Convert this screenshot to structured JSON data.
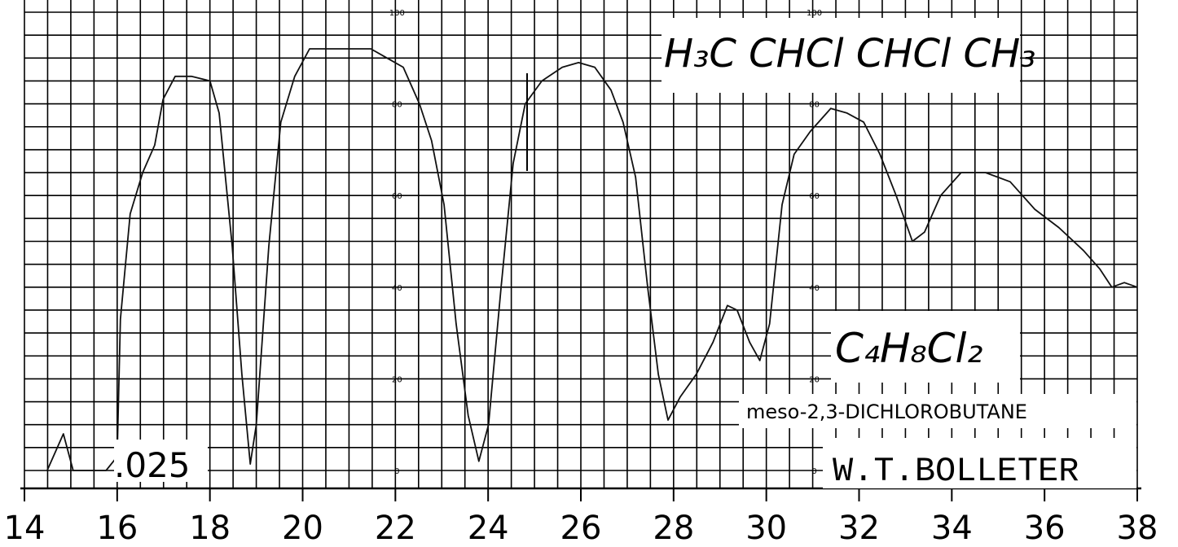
{
  "chart_data": {
    "type": "line",
    "title": "H₃C CHCl CHCl CH₃",
    "formula": "C₄H₈Cl₂",
    "subtitle": "meso-2,3-DICHLOROBUTANE",
    "author": "W.T.BOLLETER",
    "annotation": ".025",
    "color": "#111111",
    "x": [
      14.49,
      14.84,
      15.05,
      15.76,
      16.0,
      16.07,
      16.28,
      16.55,
      16.81,
      16.99,
      17.25,
      17.6,
      18.0,
      18.2,
      18.48,
      18.69,
      18.87,
      19.0,
      19.27,
      19.53,
      19.83,
      20.15,
      20.5,
      21.03,
      21.47,
      21.82,
      22.17,
      22.52,
      22.78,
      23.05,
      23.31,
      23.57,
      23.8,
      24.01,
      24.28,
      24.54,
      24.8,
      25.16,
      25.6,
      25.95,
      26.3,
      26.65,
      26.91,
      27.18,
      27.44,
      27.67,
      27.88,
      28.14,
      28.49,
      28.85,
      29.16,
      29.37,
      29.64,
      29.86,
      30.07,
      30.34,
      30.6,
      30.95,
      31.39,
      31.74,
      32.1,
      32.45,
      32.8,
      33.15,
      33.41,
      33.76,
      34.2,
      34.73,
      35.26,
      35.79,
      36.31,
      36.84,
      37.19,
      37.45,
      37.72,
      38.0
    ],
    "values": [
      0,
      8,
      0,
      0,
      3,
      33,
      56,
      65,
      71,
      81,
      86,
      86,
      85,
      78,
      49,
      21,
      1.4,
      10,
      49,
      76,
      86,
      92,
      92,
      92,
      92,
      90,
      88,
      80,
      72,
      58,
      32,
      12,
      2,
      10,
      40,
      67,
      80,
      85,
      88,
      89,
      88,
      83,
      76,
      64,
      40,
      21,
      11,
      16,
      21,
      28,
      36,
      35,
      28,
      24,
      32,
      58,
      69,
      74,
      79,
      78,
      76,
      69,
      60,
      50,
      52,
      60,
      65,
      65,
      63,
      57,
      53,
      48,
      44,
      40,
      41,
      40
    ],
    "xlim": [
      14,
      38
    ],
    "ylim": [
      0,
      100
    ],
    "xticks": [
      14,
      16,
      18,
      20,
      22,
      24,
      26,
      28,
      30,
      32,
      34,
      36,
      38
    ],
    "yticks": [
      0,
      20,
      40,
      60,
      80,
      100
    ],
    "xgrid": [
      14,
      14.5,
      15,
      15.5,
      16,
      16.5,
      17,
      17.5,
      18,
      18.5,
      19,
      19.5,
      20,
      20.5,
      21,
      21.5,
      22,
      22.5,
      23,
      23.5,
      24,
      24.5,
      25,
      25.5,
      26,
      26.5,
      27,
      27.5,
      28,
      28.5,
      29,
      29.5,
      30,
      30.5,
      31,
      31.5,
      32,
      32.5,
      33,
      33.5,
      34,
      34.5,
      35,
      35.5,
      36,
      36.5,
      37,
      37.5,
      38
    ],
    "ygrid": [
      0,
      5,
      10,
      15,
      20,
      25,
      30,
      35,
      40,
      45,
      50,
      55,
      60,
      65,
      70,
      75,
      80,
      85,
      90,
      95,
      100
    ],
    "grid": true
  }
}
